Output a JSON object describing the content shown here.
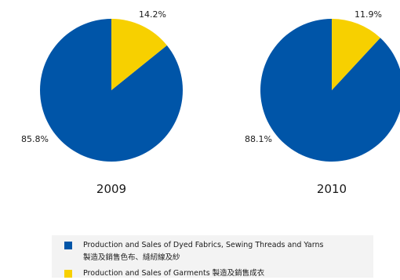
{
  "colors": {
    "dyed_fabrics": "#0055a8",
    "garments": "#f7d000"
  },
  "chart_data": [
    {
      "type": "pie",
      "title": "2009",
      "slices": [
        {
          "label": "Production and Sales of Dyed Fabrics, Sewing Threads and Yarns 製造及銷售色布、縫紉線及紗",
          "value": 85.8,
          "display": "85.8%"
        },
        {
          "label": "Production and Sales of Garments 製造及銷售成衣",
          "value": 14.2,
          "display": "14.2%"
        }
      ]
    },
    {
      "type": "pie",
      "title": "2010",
      "slices": [
        {
          "label": "Production and Sales of Dyed Fabrics, Sewing Threads and Yarns 製造及銷售色布、縫紉線及紗",
          "value": 88.1,
          "display": "88.1%"
        },
        {
          "label": "Production and Sales of Garments 製造及銷售成衣",
          "value": 11.9,
          "display": "11.9%"
        }
      ]
    }
  ],
  "legend": {
    "items": [
      {
        "text_en": "Production and Sales of Dyed Fabrics, Sewing Threads and Yarns",
        "text_zh": "製造及銷售色布、縫紉線及紗",
        "color": "#0055a8"
      },
      {
        "text": "Production and Sales of Garments 製造及銷售成衣",
        "color": "#f7d000"
      }
    ]
  }
}
